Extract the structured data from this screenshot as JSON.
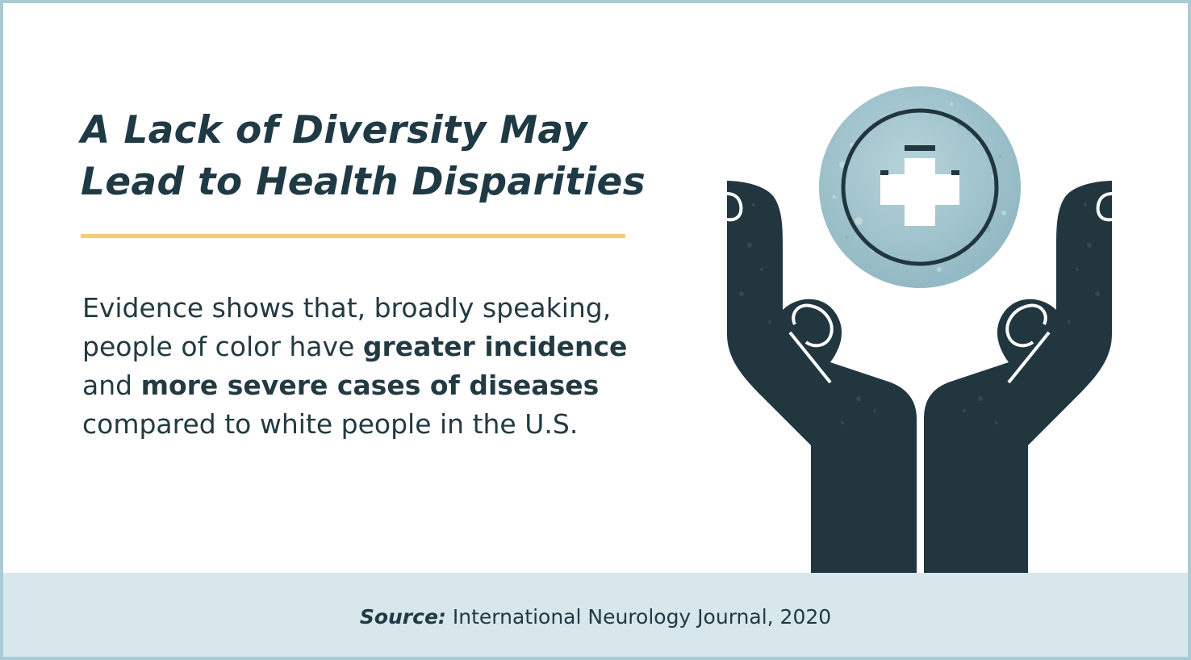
{
  "heading": {
    "line1": "A Lack of Diversity May",
    "line2": "Lead to Health Disparities"
  },
  "body": {
    "part1": "Evidence shows that, broadly speaking, people of color have ",
    "bold1": "greater incidence",
    "part2": " and ",
    "bold2": "more severe cases of diseases",
    "part3": " compared to white people in the U.S."
  },
  "illustration": {
    "icon": "hands-holding-medical-cross-icon"
  },
  "footer": {
    "source_label": "Source:",
    "source_text": " International Neurology Journal, 2020"
  },
  "colors": {
    "dark": "#21363f",
    "accent_rule": "#f5cd72",
    "circle": "#9ec3cd",
    "footer_bg": "#d8e7eb",
    "border": "#a9cbd4"
  }
}
